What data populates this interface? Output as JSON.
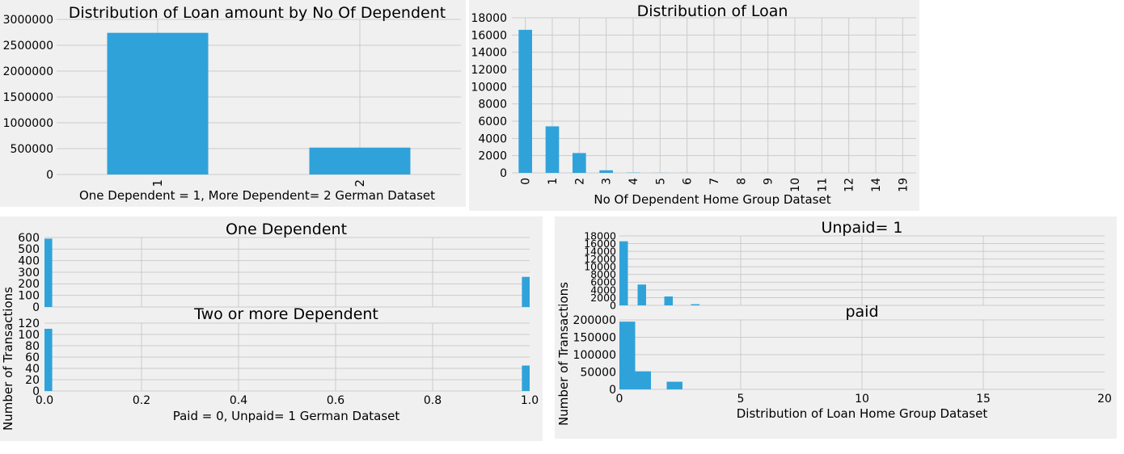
{
  "charts": [
    {
      "type": "bar",
      "title": "Distribution of Loan amount by No Of Dependent",
      "xlabel": "One Dependent = 1, More Dependent= 2 German Dataset",
      "ylabel": "",
      "categories": [
        "1",
        "2"
      ],
      "values": [
        2740000,
        520000
      ],
      "ylim": [
        0,
        3000000
      ],
      "yticks": [
        "0",
        "500000",
        "1000000",
        "1500000",
        "2000000",
        "2500000",
        "3000000"
      ],
      "color": "#30a2da",
      "grid": true
    },
    {
      "type": "bar",
      "title": "Distribution of Loan",
      "xlabel": "No Of Dependent Home Group Dataset",
      "ylabel": "",
      "categories": [
        "0",
        "1",
        "2",
        "3",
        "4",
        "5",
        "6",
        "7",
        "8",
        "9",
        "10",
        "11",
        "12",
        "14",
        "19"
      ],
      "values": [
        16600,
        5400,
        2300,
        300,
        30,
        10,
        5,
        3,
        2,
        2,
        1,
        1,
        1,
        1,
        1
      ],
      "ylim": [
        0,
        18000
      ],
      "yticks": [
        "0",
        "2000",
        "4000",
        "6000",
        "8000",
        "10000",
        "12000",
        "14000",
        "16000",
        "18000"
      ],
      "color": "#30a2da",
      "grid": true
    },
    {
      "type": "histogram",
      "title": "One Dependent",
      "xlabel": "",
      "ylabel": "",
      "bins": [
        {
          "x0": 0.0,
          "x1": 0.016,
          "value": 590
        },
        {
          "x0": 0.984,
          "x1": 1.0,
          "value": 260
        }
      ],
      "xlim": [
        0,
        1
      ],
      "ylim": [
        0,
        600
      ],
      "xticks": [],
      "yticks": [
        "0",
        "100",
        "200",
        "300",
        "400",
        "500",
        "600"
      ],
      "color": "#30a2da"
    },
    {
      "type": "histogram",
      "title": "Two or more Dependent",
      "xlabel": "Paid = 0, Unpaid= 1 German Dataset",
      "ylabel": "",
      "bins": [
        {
          "x0": 0.0,
          "x1": 0.016,
          "value": 110
        },
        {
          "x0": 0.984,
          "x1": 1.0,
          "value": 45
        }
      ],
      "xlim": [
        0,
        1
      ],
      "ylim": [
        0,
        120
      ],
      "xticks": [
        "0.0",
        "0.2",
        "0.4",
        "0.6",
        "0.8",
        "1.0"
      ],
      "yticks": [
        "0",
        "20",
        "40",
        "60",
        "80",
        "100",
        "120"
      ],
      "color": "#30a2da"
    },
    {
      "type": "histogram",
      "title": "Unpaid= 1",
      "xlabel": "",
      "ylabel": "",
      "bins": [
        {
          "x0": 0.0,
          "x1": 0.35,
          "value": 16600
        },
        {
          "x0": 0.75,
          "x1": 1.1,
          "value": 5400
        },
        {
          "x0": 1.85,
          "x1": 2.2,
          "value": 2300
        },
        {
          "x0": 2.95,
          "x1": 3.3,
          "value": 300
        }
      ],
      "xlim": [
        0,
        20
      ],
      "ylim": [
        0,
        18000
      ],
      "xticks": [],
      "yticks": [
        "0",
        "2000",
        "4000",
        "6000",
        "8000",
        "10000",
        "12000",
        "14000",
        "16000",
        "18000"
      ],
      "color": "#30a2da"
    },
    {
      "type": "histogram",
      "title": "paid",
      "xlabel": "Distribution of Loan Home Group Dataset",
      "ylabel": "",
      "bins": [
        {
          "x0": 0.0,
          "x1": 0.65,
          "value": 195000
        },
        {
          "x0": 0.65,
          "x1": 1.3,
          "value": 52000
        },
        {
          "x0": 1.95,
          "x1": 2.6,
          "value": 22000
        }
      ],
      "xlim": [
        0,
        20
      ],
      "ylim": [
        0,
        200000
      ],
      "xticks": [
        "0",
        "5",
        "10",
        "15",
        "20"
      ],
      "yticks": [
        "0",
        "50000",
        "100000",
        "150000",
        "200000"
      ],
      "color": "#30a2da"
    }
  ],
  "shared_ylabels": {
    "left": "Number of Transactions",
    "right": "Number of Transactions"
  }
}
